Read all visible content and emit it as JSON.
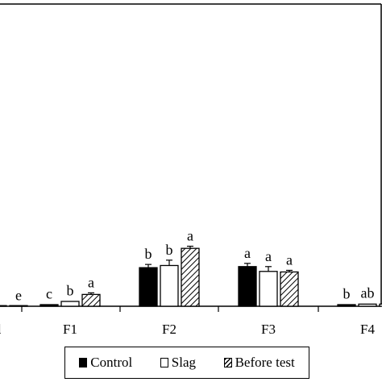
{
  "chart_data": {
    "type": "bar",
    "title": "",
    "xlabel": "",
    "ylabel": "",
    "categories": [
      "d",
      "F1",
      "F2",
      "F3",
      "F4"
    ],
    "series": [
      {
        "name": "Control",
        "values": [
          0.0,
          0.15,
          3.6,
          3.7,
          0.15
        ],
        "errors": [
          0.0,
          0.05,
          0.3,
          0.3,
          0.05
        ],
        "letters": [
          "",
          "c",
          "b",
          "a",
          "b"
        ]
      },
      {
        "name": "Slag",
        "values": [
          0.0,
          0.45,
          3.8,
          3.25,
          0.2
        ],
        "errors": [
          0.0,
          0.05,
          0.5,
          0.45,
          0.05
        ],
        "letters": [
          "",
          "b",
          "b",
          "a",
          "ab"
        ]
      },
      {
        "name": "Before test",
        "values": [
          0.05,
          1.1,
          5.4,
          3.2,
          0.2
        ],
        "errors": [
          0.0,
          0.15,
          0.2,
          0.15,
          0.05
        ],
        "letters": [
          "e",
          "a",
          "a",
          "a",
          ""
        ]
      }
    ],
    "colors": {
      "Control": "#000000",
      "Slag": "#ffffff",
      "Before test": "hatched"
    },
    "grid": false,
    "legend_position": "bottom"
  }
}
